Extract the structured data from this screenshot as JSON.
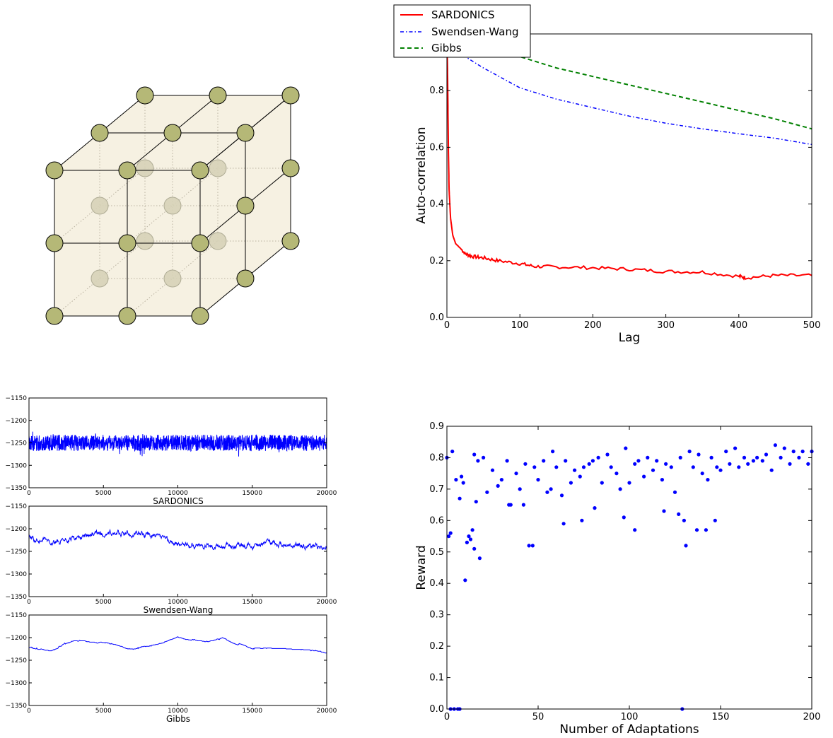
{
  "chart_data": [
    {
      "type": "diagram",
      "nodes_per_edge": 3,
      "node_color": "#b5b877",
      "inner_node_color": "#d7d3b8",
      "face_color": "#f5efdf"
    },
    {
      "type": "line",
      "xlabel": "Lag",
      "ylabel": "Auto-correlation",
      "xlim": [
        0,
        500
      ],
      "ylim": [
        0,
        1.0
      ],
      "xticks": [
        "0",
        "100",
        "200",
        "300",
        "400",
        "500"
      ],
      "yticks": [
        "0.0",
        "0.2",
        "0.4",
        "0.6",
        "0.8"
      ],
      "legend_position": "top-left",
      "series": [
        {
          "name": "SARDONICS",
          "color": "#ff0000",
          "style": "solid",
          "x": [
            0,
            1,
            2,
            3,
            5,
            8,
            12,
            18,
            25,
            35,
            50,
            70,
            100,
            120,
            150,
            200,
            250,
            300,
            350,
            400,
            410,
            450,
            500
          ],
          "y": [
            1.0,
            0.85,
            0.6,
            0.45,
            0.35,
            0.29,
            0.26,
            0.245,
            0.225,
            0.215,
            0.21,
            0.2,
            0.19,
            0.18,
            0.178,
            0.175,
            0.17,
            0.162,
            0.16,
            0.145,
            0.14,
            0.148,
            0.148
          ]
        },
        {
          "name": "Swendsen-Wang",
          "color": "#0000ff",
          "style": "dashdot",
          "x": [
            0,
            25,
            50,
            100,
            150,
            200,
            250,
            300,
            350,
            400,
            450,
            500
          ],
          "y": [
            1.0,
            0.92,
            0.88,
            0.81,
            0.77,
            0.74,
            0.71,
            0.685,
            0.665,
            0.648,
            0.632,
            0.61
          ]
        },
        {
          "name": "Gibbs",
          "color": "#008000",
          "style": "dashed",
          "x": [
            0,
            50,
            100,
            150,
            200,
            250,
            300,
            350,
            400,
            450,
            500
          ],
          "y": [
            1.0,
            0.96,
            0.92,
            0.88,
            0.85,
            0.82,
            0.79,
            0.76,
            0.73,
            0.7,
            0.665
          ]
        }
      ]
    },
    {
      "type": "line",
      "title": "SARDONICS",
      "color": "#0000ff",
      "xlim": [
        0,
        20000
      ],
      "ylim": [
        -1350,
        -1150
      ],
      "xticks": [
        "0",
        "5000",
        "10000",
        "15000",
        "20000"
      ],
      "yticks": [
        "−1150",
        "−1200",
        "−1250",
        "−1300",
        "−1350"
      ],
      "mean": -1250,
      "spread": 18
    },
    {
      "type": "line",
      "title": "Swendsen-Wang",
      "color": "#0000ff",
      "xlim": [
        0,
        20000
      ],
      "ylim": [
        -1350,
        -1150
      ],
      "xticks": [
        "0",
        "5000",
        "10000",
        "15000",
        "20000"
      ],
      "yticks": [
        "−1150",
        "−1200",
        "−1250",
        "−1300",
        "−1350"
      ],
      "mean_x": [
        0,
        2000,
        4000,
        6000,
        8000,
        10000,
        12000,
        14000,
        16000,
        18000,
        20000
      ],
      "mean_y": [
        -1222,
        -1232,
        -1212,
        -1212,
        -1212,
        -1235,
        -1238,
        -1238,
        -1232,
        -1238,
        -1240
      ],
      "spread": 8
    },
    {
      "type": "line",
      "title": "Gibbs",
      "color": "#0000ff",
      "xlim": [
        0,
        20000
      ],
      "ylim": [
        -1350,
        -1150
      ],
      "xticks": [
        "0",
        "5000",
        "10000",
        "15000",
        "20000"
      ],
      "yticks": [
        "−1150",
        "−1200",
        "−1250",
        "−1300",
        "−1350"
      ],
      "mean_x": [
        0,
        1500,
        3000,
        5000,
        7000,
        9000,
        10000,
        12000,
        13000,
        15000,
        17000,
        19000,
        20000
      ],
      "mean_y": [
        -1222,
        -1228,
        -1205,
        -1210,
        -1225,
        -1212,
        -1198,
        -1210,
        -1200,
        -1225,
        -1225,
        -1228,
        -1236
      ],
      "spread": 3
    },
    {
      "type": "scatter",
      "xlabel": "Number of Adaptations",
      "ylabel": "Reward",
      "xlim": [
        0,
        200
      ],
      "ylim": [
        0,
        0.9
      ],
      "xticks": [
        "0",
        "50",
        "100",
        "150",
        "200"
      ],
      "yticks": [
        "0.0",
        "0.1",
        "0.2",
        "0.3",
        "0.4",
        "0.5",
        "0.6",
        "0.7",
        "0.8",
        "0.9"
      ],
      "color": "#0000ff",
      "x": [
        0,
        1,
        2,
        3,
        4,
        5,
        6,
        7,
        8,
        9,
        10,
        11,
        12,
        13,
        14,
        15,
        16,
        17,
        18,
        20,
        22,
        25,
        28,
        30,
        33,
        35,
        38,
        40,
        43,
        45,
        48,
        50,
        53,
        55,
        58,
        60,
        63,
        65,
        68,
        70,
        73,
        75,
        78,
        80,
        83,
        85,
        88,
        90,
        93,
        95,
        98,
        100,
        103,
        105,
        108,
        110,
        113,
        115,
        118,
        120,
        123,
        125,
        128,
        130,
        133,
        135,
        138,
        140,
        143,
        145,
        148,
        150,
        153,
        155,
        158,
        160,
        163,
        165,
        168,
        170,
        173,
        175,
        178,
        180,
        183,
        185,
        188,
        190,
        193,
        195,
        198,
        200,
        15,
        34,
        42,
        47,
        57,
        64,
        74,
        81,
        97,
        103,
        119,
        127,
        131,
        137,
        142,
        147,
        2,
        7,
        129
      ],
      "y": [
        0.8,
        0.55,
        0.56,
        0.82,
        0.0,
        0.73,
        0.0,
        0.67,
        0.74,
        0.72,
        0.41,
        0.53,
        0.55,
        0.54,
        0.57,
        0.81,
        0.66,
        0.79,
        0.48,
        0.8,
        0.69,
        0.76,
        0.71,
        0.73,
        0.79,
        0.65,
        0.75,
        0.7,
        0.78,
        0.52,
        0.77,
        0.73,
        0.79,
        0.69,
        0.82,
        0.77,
        0.68,
        0.79,
        0.72,
        0.76,
        0.74,
        0.77,
        0.78,
        0.79,
        0.8,
        0.72,
        0.81,
        0.77,
        0.75,
        0.7,
        0.83,
        0.72,
        0.78,
        0.79,
        0.74,
        0.8,
        0.76,
        0.79,
        0.73,
        0.78,
        0.77,
        0.69,
        0.8,
        0.6,
        0.82,
        0.77,
        0.81,
        0.75,
        0.73,
        0.8,
        0.77,
        0.76,
        0.82,
        0.78,
        0.83,
        0.77,
        0.8,
        0.78,
        0.79,
        0.8,
        0.79,
        0.81,
        0.76,
        0.84,
        0.8,
        0.83,
        0.78,
        0.82,
        0.8,
        0.82,
        0.78,
        0.82,
        0.51,
        0.65,
        0.65,
        0.52,
        0.7,
        0.59,
        0.6,
        0.64,
        0.61,
        0.57,
        0.63,
        0.62,
        0.52,
        0.57,
        0.57,
        0.6,
        0.0,
        0.0,
        0.0
      ]
    }
  ]
}
